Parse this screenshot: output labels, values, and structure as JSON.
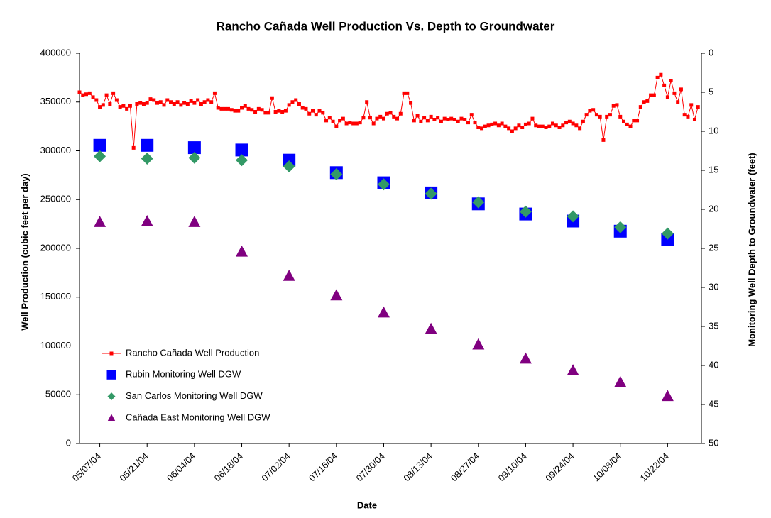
{
  "chart_data": {
    "type": "line",
    "title": "Rancho Cañada Well Production Vs. Depth to Groundwater",
    "x_label": "Date",
    "y_label": "Well Production (cubic feet per day)",
    "y2_label": "Monitoring Well Depth to Groundwater (feet)",
    "xlim": [
      "2004-05-01",
      "2004-11-01"
    ],
    "xticks": [
      {
        "value": "2004-05-07",
        "label": "05/07/04"
      },
      {
        "value": "2004-05-21",
        "label": "05/21/04"
      },
      {
        "value": "2004-06-04",
        "label": "06/04/04"
      },
      {
        "value": "2004-06-18",
        "label": "06/18/04"
      },
      {
        "value": "2004-07-02",
        "label": "07/02/04"
      },
      {
        "value": "2004-07-16",
        "label": "07/16/04"
      },
      {
        "value": "2004-07-30",
        "label": "07/30/04"
      },
      {
        "value": "2004-08-13",
        "label": "08/13/04"
      },
      {
        "value": "2004-08-27",
        "label": "08/27/04"
      },
      {
        "value": "2004-09-10",
        "label": "09/10/04"
      },
      {
        "value": "2004-09-24",
        "label": "09/24/04"
      },
      {
        "value": "2004-10-08",
        "label": "10/08/04"
      },
      {
        "value": "2004-10-22",
        "label": "10/22/04"
      }
    ],
    "ylim": [
      0,
      400000
    ],
    "yticks": [
      0,
      50000,
      100000,
      150000,
      200000,
      250000,
      300000,
      350000,
      400000
    ],
    "y2lim": [
      0,
      50
    ],
    "y2ticks": [
      0,
      5,
      10,
      15,
      20,
      25,
      30,
      35,
      40,
      45,
      50
    ],
    "y2_inverted": true,
    "grid": false,
    "legend": "lower left",
    "series": [
      {
        "name": "Rancho Cañada Well Production",
        "color": "#ff0000",
        "kind": "line",
        "marker": "square",
        "axis": "y",
        "x": [
          "2004-05-01",
          "2004-05-02",
          "2004-05-03",
          "2004-05-04",
          "2004-05-05",
          "2004-05-06",
          "2004-05-07",
          "2004-05-08",
          "2004-05-09",
          "2004-05-10",
          "2004-05-11",
          "2004-05-12",
          "2004-05-13",
          "2004-05-14",
          "2004-05-15",
          "2004-05-16",
          "2004-05-17",
          "2004-05-18",
          "2004-05-19",
          "2004-05-20",
          "2004-05-21",
          "2004-05-22",
          "2004-05-23",
          "2004-05-24",
          "2004-05-25",
          "2004-05-26",
          "2004-05-27",
          "2004-05-28",
          "2004-05-29",
          "2004-05-30",
          "2004-05-31",
          "2004-06-01",
          "2004-06-02",
          "2004-06-03",
          "2004-06-04",
          "2004-06-05",
          "2004-06-06",
          "2004-06-07",
          "2004-06-08",
          "2004-06-09",
          "2004-06-10",
          "2004-06-11",
          "2004-06-12",
          "2004-06-13",
          "2004-06-14",
          "2004-06-15",
          "2004-06-16",
          "2004-06-17",
          "2004-06-18",
          "2004-06-19",
          "2004-06-20",
          "2004-06-21",
          "2004-06-22",
          "2004-06-23",
          "2004-06-24",
          "2004-06-25",
          "2004-06-26",
          "2004-06-27",
          "2004-06-28",
          "2004-06-29",
          "2004-06-30",
          "2004-07-01",
          "2004-07-02",
          "2004-07-03",
          "2004-07-04",
          "2004-07-05",
          "2004-07-06",
          "2004-07-07",
          "2004-07-08",
          "2004-07-09",
          "2004-07-10",
          "2004-07-11",
          "2004-07-12",
          "2004-07-13",
          "2004-07-14",
          "2004-07-15",
          "2004-07-16",
          "2004-07-17",
          "2004-07-18",
          "2004-07-19",
          "2004-07-20",
          "2004-07-21",
          "2004-07-22",
          "2004-07-23",
          "2004-07-24",
          "2004-07-25",
          "2004-07-26",
          "2004-07-27",
          "2004-07-28",
          "2004-07-29",
          "2004-07-30",
          "2004-07-31",
          "2004-08-01",
          "2004-08-02",
          "2004-08-03",
          "2004-08-04",
          "2004-08-05",
          "2004-08-06",
          "2004-08-07",
          "2004-08-08",
          "2004-08-09",
          "2004-08-10",
          "2004-08-11",
          "2004-08-12",
          "2004-08-13",
          "2004-08-14",
          "2004-08-15",
          "2004-08-16",
          "2004-08-17",
          "2004-08-18",
          "2004-08-19",
          "2004-08-20",
          "2004-08-21",
          "2004-08-22",
          "2004-08-23",
          "2004-08-24",
          "2004-08-25",
          "2004-08-26",
          "2004-08-27",
          "2004-08-28",
          "2004-08-29",
          "2004-08-30",
          "2004-08-31",
          "2004-09-01",
          "2004-09-02",
          "2004-09-03",
          "2004-09-04",
          "2004-09-05",
          "2004-09-06",
          "2004-09-07",
          "2004-09-08",
          "2004-09-09",
          "2004-09-10",
          "2004-09-11",
          "2004-09-12",
          "2004-09-13",
          "2004-09-14",
          "2004-09-15",
          "2004-09-16",
          "2004-09-17",
          "2004-09-18",
          "2004-09-19",
          "2004-09-20",
          "2004-09-21",
          "2004-09-22",
          "2004-09-23",
          "2004-09-24",
          "2004-09-25",
          "2004-09-26",
          "2004-09-27",
          "2004-09-28",
          "2004-09-29",
          "2004-09-30",
          "2004-10-01",
          "2004-10-02",
          "2004-10-03",
          "2004-10-04",
          "2004-10-05",
          "2004-10-06",
          "2004-10-07",
          "2004-10-08",
          "2004-10-09",
          "2004-10-10",
          "2004-10-11",
          "2004-10-12",
          "2004-10-13",
          "2004-10-14",
          "2004-10-15",
          "2004-10-16",
          "2004-10-17",
          "2004-10-18",
          "2004-10-19",
          "2004-10-20",
          "2004-10-21",
          "2004-10-22",
          "2004-10-23",
          "2004-10-24",
          "2004-10-25",
          "2004-10-26",
          "2004-10-27",
          "2004-10-28",
          "2004-10-29",
          "2004-10-30",
          "2004-10-31"
        ],
        "values": [
          360000,
          357000,
          358000,
          359000,
          355000,
          352000,
          345000,
          347000,
          357000,
          348000,
          359000,
          352000,
          345000,
          346000,
          343000,
          346000,
          303000,
          348000,
          349000,
          348000,
          349000,
          353000,
          352000,
          349000,
          350000,
          347000,
          352000,
          350000,
          348000,
          350000,
          347000,
          349000,
          348000,
          351000,
          349000,
          352000,
          348000,
          350000,
          352000,
          350000,
          359000,
          344000,
          343000,
          343000,
          343000,
          342000,
          341000,
          341000,
          344000,
          346000,
          343000,
          342000,
          340000,
          343000,
          342000,
          339000,
          339000,
          354000,
          340000,
          341000,
          340000,
          341000,
          347000,
          350000,
          352000,
          348000,
          344000,
          343000,
          338000,
          341000,
          337000,
          341000,
          339000,
          331000,
          334000,
          330000,
          325000,
          331000,
          333000,
          328000,
          329000,
          328000,
          328000,
          329000,
          334000,
          350000,
          334000,
          328000,
          333000,
          335000,
          333000,
          338000,
          339000,
          335000,
          333000,
          338000,
          359000,
          359000,
          349000,
          331000,
          336000,
          330000,
          334000,
          331000,
          335000,
          332000,
          334000,
          330000,
          333000,
          332000,
          333000,
          332000,
          330000,
          333000,
          332000,
          329000,
          337000,
          329000,
          324000,
          323000,
          325000,
          326000,
          327000,
          328000,
          326000,
          328000,
          325000,
          323000,
          320000,
          323000,
          326000,
          324000,
          327000,
          328000,
          333000,
          326000,
          325000,
          325000,
          324000,
          325000,
          328000,
          326000,
          324000,
          326000,
          329000,
          330000,
          328000,
          326000,
          323000,
          330000,
          337000,
          341000,
          342000,
          337000,
          335000,
          311000,
          335000,
          337000,
          346000,
          347000,
          335000,
          330000,
          327000,
          325000,
          331000,
          331000,
          345000,
          350000,
          351000,
          357000,
          357000,
          375000,
          378000,
          367000,
          355000,
          372000,
          359000,
          350000,
          363000,
          337000,
          335000,
          347000,
          332000,
          345000
        ]
      },
      {
        "name": "Rubin Monitoring Well DGW",
        "color": "#0000ff",
        "kind": "scatter",
        "marker": "square",
        "axis": "y2",
        "x": [
          "2004-05-07",
          "2004-05-21",
          "2004-06-04",
          "2004-06-18",
          "2004-07-02",
          "2004-07-16",
          "2004-07-30",
          "2004-08-13",
          "2004-08-27",
          "2004-09-10",
          "2004-09-24",
          "2004-10-08",
          "2004-10-22"
        ],
        "values": [
          11.8,
          11.8,
          12.1,
          12.4,
          13.7,
          15.3,
          16.6,
          17.9,
          19.3,
          20.6,
          21.5,
          22.8,
          23.9
        ]
      },
      {
        "name": "San Carlos Monitoring Well DGW",
        "color": "#339966",
        "kind": "scatter",
        "marker": "diamond",
        "axis": "y2",
        "x": [
          "2004-05-07",
          "2004-05-21",
          "2004-06-04",
          "2004-06-18",
          "2004-07-02",
          "2004-07-16",
          "2004-07-30",
          "2004-08-13",
          "2004-08-27",
          "2004-09-10",
          "2004-09-24",
          "2004-10-08",
          "2004-10-22"
        ],
        "values": [
          13.2,
          13.5,
          13.4,
          13.7,
          14.5,
          15.5,
          16.8,
          18.0,
          19.1,
          20.3,
          20.9,
          22.3,
          23.1
        ]
      },
      {
        "name": "Cañada East Monitoring Well DGW",
        "color": "#800080",
        "kind": "scatter",
        "marker": "triangle",
        "axis": "y2",
        "x": [
          "2004-05-07",
          "2004-05-21",
          "2004-06-04",
          "2004-06-18",
          "2004-07-02",
          "2004-07-16",
          "2004-07-30",
          "2004-08-13",
          "2004-08-27",
          "2004-09-10",
          "2004-09-24",
          "2004-10-08",
          "2004-10-22"
        ],
        "values": [
          21.6,
          21.5,
          21.6,
          25.4,
          28.5,
          31.0,
          33.2,
          35.3,
          37.3,
          39.1,
          40.6,
          42.1,
          43.9
        ]
      }
    ]
  }
}
